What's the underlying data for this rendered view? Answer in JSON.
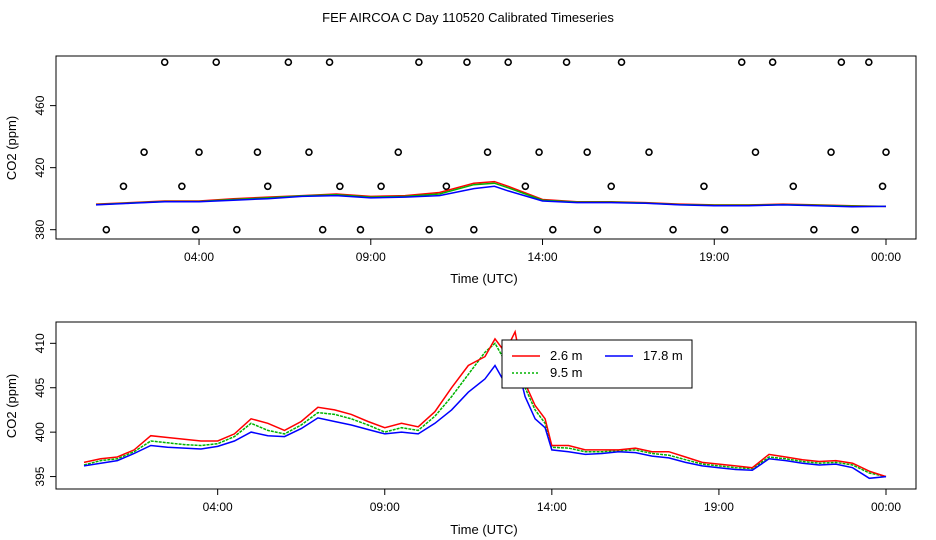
{
  "title": "FEF AIRCOA C  Day 110520  Calibrated Timeseries",
  "chart_data": [
    {
      "type": "line",
      "xlabel": "Time (UTC)",
      "ylabel": "CO2 (ppm)",
      "x_ticks": [
        "04:00",
        "09:00",
        "14:00",
        "19:00",
        "00:00"
      ],
      "y_ticks": [
        "380",
        "420",
        "460"
      ],
      "ylim": [
        374,
        492
      ],
      "xlim_hours": [
        1.0,
        24.0
      ],
      "x_tick_hours": [
        4,
        9,
        14,
        19,
        24
      ],
      "y_tick_values": [
        380,
        420,
        460
      ],
      "series": [
        {
          "color": "#ff0000",
          "values": "top-line-red"
        },
        {
          "color": "#00b400",
          "values": "top-line-green"
        },
        {
          "color": "#0000ff",
          "values": "top-line-blue"
        }
      ],
      "lines": {
        "hours": [
          1.0,
          2.0,
          3.0,
          4.0,
          5.0,
          6.0,
          7.0,
          8.0,
          9.0,
          10.0,
          11.0,
          12.0,
          12.6,
          13.0,
          14.0,
          15.0,
          16.0,
          17.0,
          18.0,
          19.0,
          20.0,
          21.0,
          22.0,
          23.0,
          24.0
        ],
        "red": [
          396.5,
          397.5,
          398.5,
          398.5,
          400.0,
          401.0,
          402.0,
          403.0,
          401.5,
          402.0,
          404.0,
          410.0,
          411.0,
          408.0,
          399.5,
          398.0,
          398.0,
          397.5,
          396.5,
          396.0,
          396.0,
          396.5,
          396.0,
          395.5,
          395.0
        ],
        "green": [
          396.2,
          397.2,
          398.2,
          398.2,
          399.5,
          400.5,
          401.8,
          402.5,
          401.0,
          401.5,
          403.0,
          409.0,
          410.0,
          407.0,
          399.0,
          397.8,
          397.8,
          397.2,
          396.2,
          395.8,
          395.8,
          396.2,
          395.8,
          395.2,
          395.0
        ],
        "blue": [
          396.0,
          397.0,
          398.0,
          398.0,
          399.0,
          400.0,
          401.5,
          402.0,
          400.5,
          401.0,
          402.0,
          406.5,
          408.0,
          405.0,
          398.5,
          397.5,
          397.5,
          397.0,
          396.0,
          395.5,
          395.5,
          396.0,
          395.5,
          394.8,
          395.0
        ]
      },
      "scatter": {
        "x": [
          1.3,
          1.8,
          2.4,
          3.0,
          3.5,
          3.9,
          4.0,
          4.5,
          5.1,
          5.7,
          6.0,
          6.6,
          7.2,
          7.6,
          7.8,
          8.1,
          8.7,
          9.3,
          9.8,
          10.4,
          10.7,
          11.2,
          11.8,
          12.0,
          12.4,
          13.0,
          13.5,
          13.9,
          14.3,
          14.7,
          15.3,
          15.6,
          16.0,
          16.3,
          17.1,
          17.8,
          18.7,
          19.3,
          19.8,
          20.2,
          20.7,
          21.3,
          21.9,
          22.4,
          22.7,
          23.1,
          23.5,
          23.9,
          24.0
        ],
        "y": [
          380,
          408,
          430,
          488,
          408,
          380,
          430,
          488,
          380,
          430,
          408,
          488,
          430,
          380,
          488,
          408,
          380,
          408,
          430,
          488,
          380,
          408,
          488,
          380,
          430,
          488,
          408,
          430,
          380,
          488,
          430,
          380,
          408,
          488,
          430,
          380,
          408,
          380,
          488,
          430,
          488,
          408,
          380,
          430,
          488,
          380,
          488,
          408,
          430
        ],
        "note_marker": "open circle"
      }
    },
    {
      "type": "line",
      "xlabel": "Time (UTC)",
      "ylabel": "CO2 (ppm)",
      "x_ticks": [
        "04:00",
        "09:00",
        "14:00",
        "19:00",
        "00:00"
      ],
      "y_ticks": [
        "395",
        "400",
        "405",
        "410"
      ],
      "ylim": [
        393.6,
        412.4
      ],
      "xlim_hours": [
        -0.1,
        24.9
      ],
      "x_tick_hours": [
        4,
        9,
        14,
        19,
        24
      ],
      "y_tick_values": [
        395,
        400,
        405,
        410
      ],
      "legend": [
        "2.6 m",
        "9.5 m",
        "17.8 m"
      ],
      "series": [
        {
          "name": "2.6 m",
          "color": "#ff0000"
        },
        {
          "name": "9.5 m",
          "color": "#00b400"
        },
        {
          "name": "17.8 m",
          "color": "#0000ff"
        }
      ],
      "hours": [
        0.0,
        0.5,
        1.0,
        1.5,
        2.0,
        2.5,
        3.0,
        3.5,
        4.0,
        4.5,
        5.0,
        5.5,
        6.0,
        6.5,
        7.0,
        7.5,
        8.0,
        8.5,
        9.0,
        9.5,
        10.0,
        10.5,
        11.0,
        11.5,
        12.0,
        12.3,
        12.6,
        12.9,
        13.2,
        13.5,
        13.8,
        14.0,
        14.5,
        15.0,
        15.5,
        16.0,
        16.5,
        17.0,
        17.5,
        18.0,
        18.5,
        19.0,
        19.5,
        20.0,
        20.5,
        21.0,
        21.5,
        22.0,
        22.5,
        23.0,
        23.5,
        24.0
      ],
      "red": [
        396.6,
        397.0,
        397.2,
        398.0,
        399.6,
        399.4,
        399.2,
        399.0,
        399.0,
        399.8,
        401.5,
        401.0,
        400.2,
        401.2,
        402.8,
        402.5,
        402.0,
        401.2,
        400.5,
        401.0,
        400.6,
        402.3,
        405.0,
        407.5,
        408.5,
        410.5,
        409.0,
        411.3,
        405.5,
        403.0,
        401.5,
        398.5,
        398.5,
        398.0,
        398.0,
        398.0,
        398.2,
        397.8,
        397.8,
        397.2,
        396.6,
        396.4,
        396.2,
        396.0,
        397.5,
        397.2,
        396.9,
        396.7,
        396.8,
        396.5,
        395.6,
        395.0
      ],
      "green": [
        396.3,
        396.8,
        397.0,
        397.8,
        399.0,
        398.8,
        398.6,
        398.5,
        398.7,
        399.5,
        401.0,
        400.2,
        399.8,
        400.8,
        402.2,
        402.0,
        401.5,
        400.8,
        400.0,
        400.5,
        400.2,
        401.8,
        404.0,
        406.5,
        409.0,
        410.0,
        408.0,
        409.5,
        405.0,
        402.5,
        401.0,
        398.3,
        398.2,
        397.8,
        397.8,
        397.9,
        398.0,
        397.6,
        397.4,
        396.9,
        396.4,
        396.2,
        396.0,
        395.9,
        397.2,
        397.0,
        396.7,
        396.5,
        396.6,
        396.3,
        395.4,
        395.0
      ],
      "blue": [
        396.2,
        396.5,
        396.8,
        397.6,
        398.5,
        398.3,
        398.2,
        398.1,
        398.4,
        399.0,
        400.0,
        399.6,
        399.5,
        400.4,
        401.6,
        401.2,
        400.8,
        400.3,
        399.8,
        400.0,
        399.8,
        401.0,
        402.5,
        404.5,
        406.0,
        407.5,
        405.5,
        408.5,
        404.0,
        401.5,
        400.5,
        398.0,
        397.8,
        397.5,
        397.6,
        397.8,
        397.7,
        397.3,
        397.1,
        396.6,
        396.2,
        396.0,
        395.8,
        395.7,
        397.0,
        396.8,
        396.5,
        396.3,
        396.4,
        396.0,
        394.8,
        395.0
      ]
    }
  ]
}
